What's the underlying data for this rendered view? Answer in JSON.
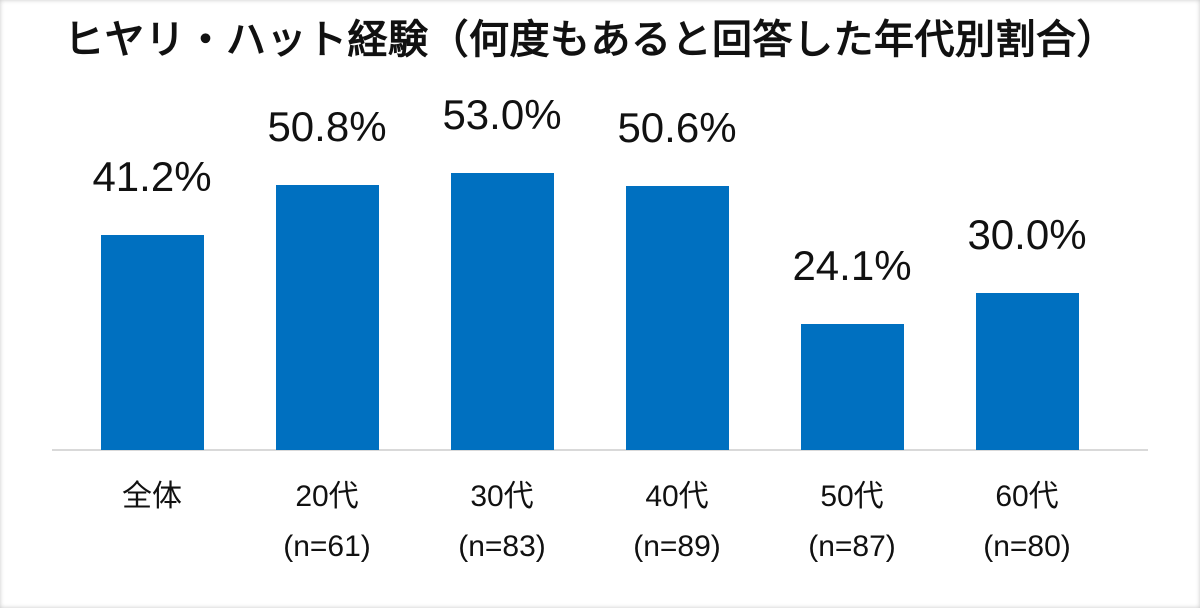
{
  "page": {
    "background": "#ffffff"
  },
  "chart_data": {
    "type": "bar",
    "title": "ヒヤリ・ハット経験（何度もあると回答した年代別割合）",
    "categories": [
      "全体",
      "20代",
      "30代",
      "40代",
      "50代",
      "60代"
    ],
    "category_sublabels": [
      "",
      "(n=61)",
      "(n=83)",
      "(n=89)",
      "(n=87)",
      "(n=80)"
    ],
    "values": [
      41.2,
      50.8,
      53.0,
      50.6,
      24.1,
      30.0
    ],
    "value_labels": [
      "41.2%",
      "50.8%",
      "53.0%",
      "50.6%",
      "24.1%",
      "30.0%"
    ],
    "unit": "%",
    "xlabel": "",
    "ylabel": "",
    "ylim": [
      0,
      55
    ],
    "grid": false,
    "legend": "none",
    "bar_color": "#0070C0",
    "axis_line_color": "#d9d9d9",
    "text_color": "#111111"
  }
}
